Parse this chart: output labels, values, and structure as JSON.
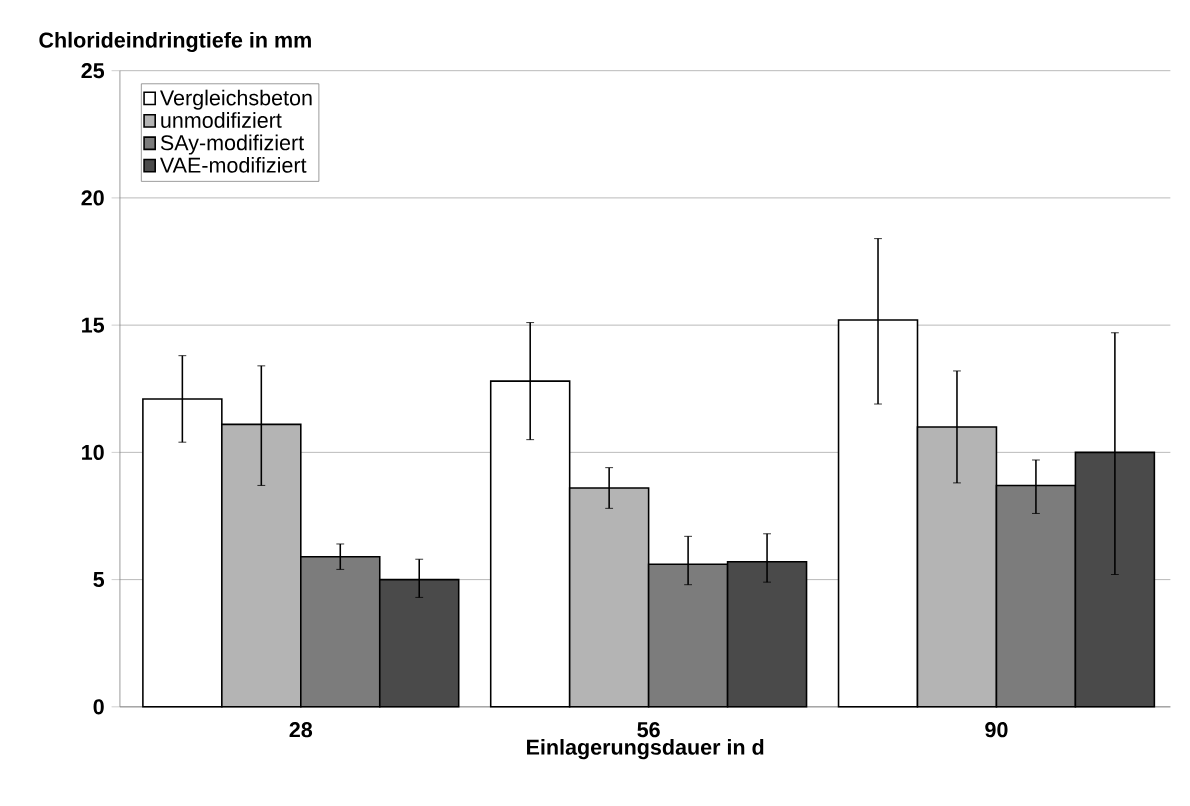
{
  "chart_data": {
    "type": "bar",
    "ylabel": "Chlorideindringtiefe in mm",
    "xlabel": "Einlagerungsdauer in d",
    "categories": [
      "28",
      "56",
      "90"
    ],
    "series": [
      {
        "name": "Vergleichsbeton",
        "color": "#ffffff",
        "values": [
          12.1,
          12.8,
          15.2
        ],
        "errors": [
          [
            10.4,
            13.8
          ],
          [
            10.5,
            15.1
          ],
          [
            11.9,
            18.4
          ]
        ]
      },
      {
        "name": "unmodifiziert",
        "color": "#b4b4b4",
        "values": [
          11.1,
          8.6,
          11.0
        ],
        "errors": [
          [
            8.7,
            13.4
          ],
          [
            7.8,
            9.4
          ],
          [
            8.8,
            13.2
          ]
        ]
      },
      {
        "name": "SAy-modifiziert",
        "color": "#7c7c7c",
        "values": [
          5.9,
          5.6,
          8.7
        ],
        "errors": [
          [
            5.4,
            6.4
          ],
          [
            4.8,
            6.7
          ],
          [
            7.6,
            9.7
          ]
        ]
      },
      {
        "name": "VAE-modifiziert",
        "color": "#4a4a4a",
        "values": [
          5.0,
          5.7,
          10.0
        ],
        "errors": [
          [
            4.3,
            5.8
          ],
          [
            4.9,
            6.8
          ],
          [
            5.2,
            14.7
          ]
        ]
      }
    ],
    "ylim": [
      0,
      25
    ],
    "yticks": [
      0,
      5,
      10,
      15,
      20,
      25
    ],
    "grid": "y",
    "legend": "top left"
  }
}
